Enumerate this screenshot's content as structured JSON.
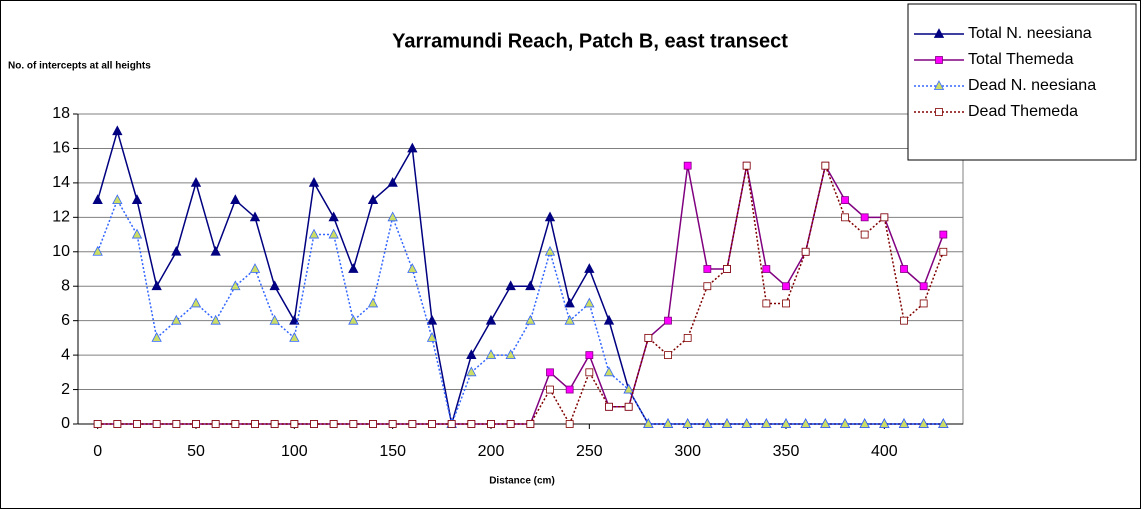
{
  "chart_data": {
    "type": "line",
    "title": "Yarramundi Reach, Patch B, east transect",
    "y_label": "No. of intercepts at all heights",
    "x_label": "Distance (cm)",
    "x": [
      0,
      10,
      20,
      30,
      40,
      50,
      60,
      70,
      80,
      90,
      100,
      110,
      120,
      130,
      140,
      150,
      160,
      170,
      180,
      190,
      200,
      210,
      220,
      230,
      240,
      250,
      260,
      270,
      280,
      290,
      300,
      310,
      320,
      330,
      340,
      350,
      360,
      370,
      380,
      390,
      400,
      410,
      420,
      430
    ],
    "series": [
      {
        "name": "Total N. neesiana",
        "color": "#000080",
        "marker": "triangle",
        "marker_fill": "#000080",
        "line_style": "solid",
        "values": [
          13,
          17,
          13,
          8,
          10,
          14,
          10,
          13,
          12,
          8,
          6,
          14,
          12,
          9,
          13,
          14,
          16,
          6,
          0,
          4,
          6,
          8,
          8,
          12,
          7,
          9,
          6,
          2,
          0,
          0,
          0,
          0,
          0,
          0,
          0,
          0,
          0,
          0,
          0,
          0,
          0,
          0,
          0,
          0
        ]
      },
      {
        "name": "Total Themeda",
        "color": "#800080",
        "marker": "square",
        "marker_fill": "#ff00ff",
        "line_style": "solid",
        "values": [
          0,
          0,
          0,
          0,
          0,
          0,
          0,
          0,
          0,
          0,
          0,
          0,
          0,
          0,
          0,
          0,
          0,
          0,
          0,
          0,
          0,
          0,
          0,
          3,
          2,
          4,
          1,
          1,
          5,
          6,
          15,
          9,
          9,
          15,
          9,
          8,
          10,
          15,
          13,
          12,
          12,
          9,
          8,
          11
        ]
      },
      {
        "name": "Dead N. neesiana",
        "color": "#3366ff",
        "marker": "triangle",
        "marker_fill": "#ccdd66",
        "line_style": "dotted",
        "values": [
          10,
          13,
          11,
          5,
          6,
          7,
          6,
          8,
          9,
          6,
          5,
          11,
          11,
          6,
          7,
          12,
          9,
          5,
          0,
          3,
          4,
          4,
          6,
          10,
          6,
          7,
          3,
          2,
          0,
          0,
          0,
          0,
          0,
          0,
          0,
          0,
          0,
          0,
          0,
          0,
          0,
          0,
          0,
          0
        ]
      },
      {
        "name": "Dead Themeda",
        "color": "#800000",
        "marker": "square",
        "marker_fill": "#ffffff",
        "line_style": "dotted",
        "values": [
          0,
          0,
          0,
          0,
          0,
          0,
          0,
          0,
          0,
          0,
          0,
          0,
          0,
          0,
          0,
          0,
          0,
          0,
          0,
          0,
          0,
          0,
          0,
          2,
          0,
          3,
          1,
          1,
          5,
          4,
          5,
          8,
          9,
          15,
          7,
          7,
          10,
          15,
          12,
          11,
          12,
          6,
          7,
          10
        ]
      }
    ],
    "xlim": [
      -10,
      440
    ],
    "xticks": [
      0,
      50,
      100,
      150,
      200,
      250,
      300,
      350,
      400
    ],
    "ylim": [
      0,
      18
    ],
    "yticks": [
      0,
      2,
      4,
      6,
      8,
      10,
      12,
      14,
      16,
      18
    ],
    "grid": true,
    "legend": "top-right"
  }
}
